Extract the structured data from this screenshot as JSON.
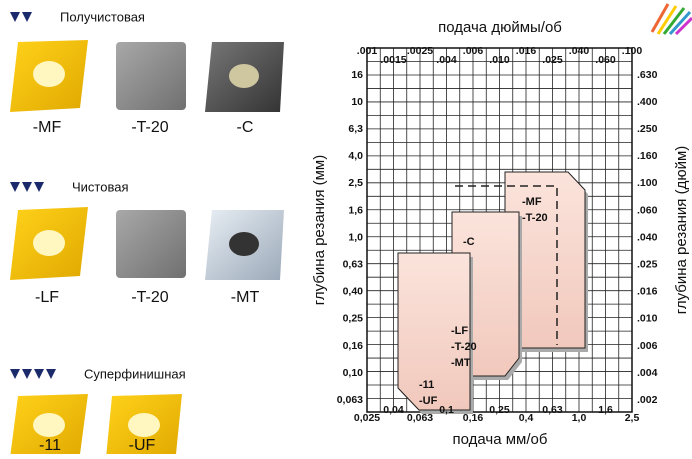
{
  "sections": [
    {
      "title": "Получистовая",
      "inserts": [
        "-MF",
        "-T-20",
        "-C"
      ]
    },
    {
      "title": "Чистовая",
      "inserts": [
        "-LF",
        "-T-20",
        "-MT"
      ]
    },
    {
      "title": "Суперфинишная",
      "inserts": [
        "-11",
        "-UF"
      ]
    }
  ],
  "diagram": {
    "top_axis_title": "подача дюймы/об",
    "top_ticks": [
      ".001",
      ".0015",
      ".0025",
      ".004",
      ".006",
      ".010",
      ".016",
      ".025",
      ".040",
      ".060",
      ".100"
    ],
    "bottom_axis_title": "подача мм/об",
    "bottom_ticks": [
      "0,025",
      "0,04",
      "0,063",
      "0,1",
      "0,16",
      "0,25",
      "0,4",
      "0,63",
      "1,0",
      "1,6",
      "2,5"
    ],
    "left_axis_title": "глубина резания (мм)",
    "left_ticks": [
      "16",
      "10",
      "6,3",
      "4,0",
      "2,5",
      "1,6",
      "1,0",
      "0,63",
      "0,40",
      "0,25",
      "0,16",
      "0,10",
      "0,063"
    ],
    "right_axis_title": "глубина резания (дюйм)",
    "right_ticks": [
      ".630",
      ".400",
      ".250",
      ".160",
      ".100",
      ".060",
      ".040",
      ".025",
      ".016",
      ".010",
      ".006",
      ".004",
      ".002"
    ],
    "regions": [
      [
        "-MF",
        "-T-20"
      ],
      [
        "-C"
      ],
      [
        "-LF",
        "-T-20",
        "-MT"
      ],
      [
        "-11",
        "-UF"
      ]
    ]
  }
}
